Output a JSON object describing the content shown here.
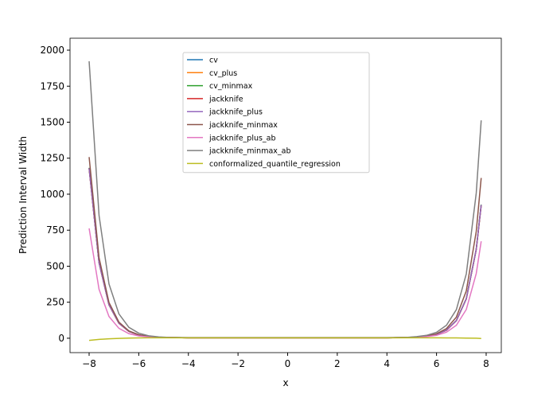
{
  "chart_data": {
    "type": "line",
    "x_label": "x",
    "y_label": "Prediction Interval Width",
    "x": [
      -8,
      -7.6,
      -7.2,
      -6.8,
      -6.4,
      -6,
      -5.6,
      -5.2,
      -4.8,
      -4,
      -3,
      -2,
      -1,
      0,
      1,
      2,
      3,
      4,
      4.8,
      5.2,
      5.6,
      6,
      6.4,
      6.8,
      7.2,
      7.6,
      7.8
    ],
    "xlim": [
      -8.77,
      8.61
    ],
    "ylim": [
      -100,
      2083
    ],
    "xticks": [
      {
        "value": -8,
        "label": "−8"
      },
      {
        "value": -6,
        "label": "−6"
      },
      {
        "value": -4,
        "label": "−4"
      },
      {
        "value": -2,
        "label": "−2"
      },
      0,
      2,
      4,
      6,
      8
    ],
    "yticks": [
      0,
      250,
      500,
      750,
      1000,
      1250,
      1500,
      1750,
      2000
    ],
    "legend": "upper center",
    "series": [
      {
        "name": "cv",
        "color": "#1f77b4",
        "values": [
          1180,
          524,
          232,
          104,
          48,
          23,
          12,
          7,
          5,
          3,
          3,
          3,
          3,
          3,
          3,
          3,
          3,
          3,
          5,
          8,
          13,
          27,
          56,
          122,
          274,
          616,
          925
        ]
      },
      {
        "name": "cv_plus",
        "color": "#ff7f0e",
        "values": [
          1182,
          525,
          233,
          105,
          48,
          23,
          12,
          7,
          5,
          3,
          3,
          3,
          3,
          3,
          3,
          3,
          3,
          3,
          5,
          8,
          13,
          27,
          56,
          123,
          275,
          617,
          927
        ]
      },
      {
        "name": "cv_minmax",
        "color": "#2ca02c",
        "values": [
          1183,
          525,
          233,
          105,
          48,
          23,
          12,
          7,
          5,
          3,
          3,
          3,
          3,
          3,
          3,
          3,
          3,
          3,
          5,
          8,
          13,
          27,
          56,
          123,
          275,
          618,
          928
        ]
      },
      {
        "name": "jackknife",
        "color": "#d62728",
        "values": [
          1178,
          523,
          232,
          104,
          47,
          22,
          12,
          7,
          5,
          3,
          3,
          3,
          3,
          3,
          3,
          3,
          3,
          3,
          5,
          8,
          13,
          27,
          55,
          122,
          273,
          615,
          922
        ]
      },
      {
        "name": "jackknife_plus",
        "color": "#9467bd",
        "values": [
          1181,
          524,
          233,
          105,
          48,
          23,
          12,
          7,
          5,
          4,
          4,
          4,
          4,
          4,
          4,
          4,
          4,
          4,
          5,
          8,
          13,
          27,
          56,
          123,
          274,
          617,
          926
        ]
      },
      {
        "name": "jackknife_minmax",
        "color": "#8c564b",
        "values": [
          1258,
          558,
          248,
          112,
          51,
          24,
          12,
          7,
          5,
          3,
          3,
          3,
          3,
          3,
          3,
          3,
          3,
          3,
          5,
          9,
          15,
          31,
          67,
          147,
          329,
          741,
          1113
        ]
      },
      {
        "name": "jackknife_plus_ab",
        "color": "#e377c2",
        "values": [
          763,
          339,
          151,
          69,
          32,
          16,
          9,
          6,
          4,
          3,
          3,
          3,
          3,
          3,
          3,
          3,
          3,
          3,
          4,
          6,
          11,
          20,
          42,
          90,
          200,
          449,
          673
        ]
      },
      {
        "name": "jackknife_minmax_ab",
        "color": "#7f7f7f",
        "values": [
          1923,
          852,
          377,
          169,
          76,
          35,
          17,
          9,
          6,
          4,
          4,
          4,
          4,
          4,
          4,
          4,
          4,
          4,
          6,
          11,
          20,
          41,
          90,
          199,
          447,
          1007,
          1513
        ]
      },
      {
        "name": "conformalized_quantile_regression",
        "color": "#bcbd22",
        "values": [
          -15,
          -8,
          -4,
          -1,
          1,
          2,
          3,
          3,
          3,
          3,
          3,
          3,
          3,
          3,
          3,
          3,
          3,
          3,
          3,
          3,
          3,
          3,
          2,
          2,
          1,
          0,
          -2
        ]
      }
    ]
  }
}
